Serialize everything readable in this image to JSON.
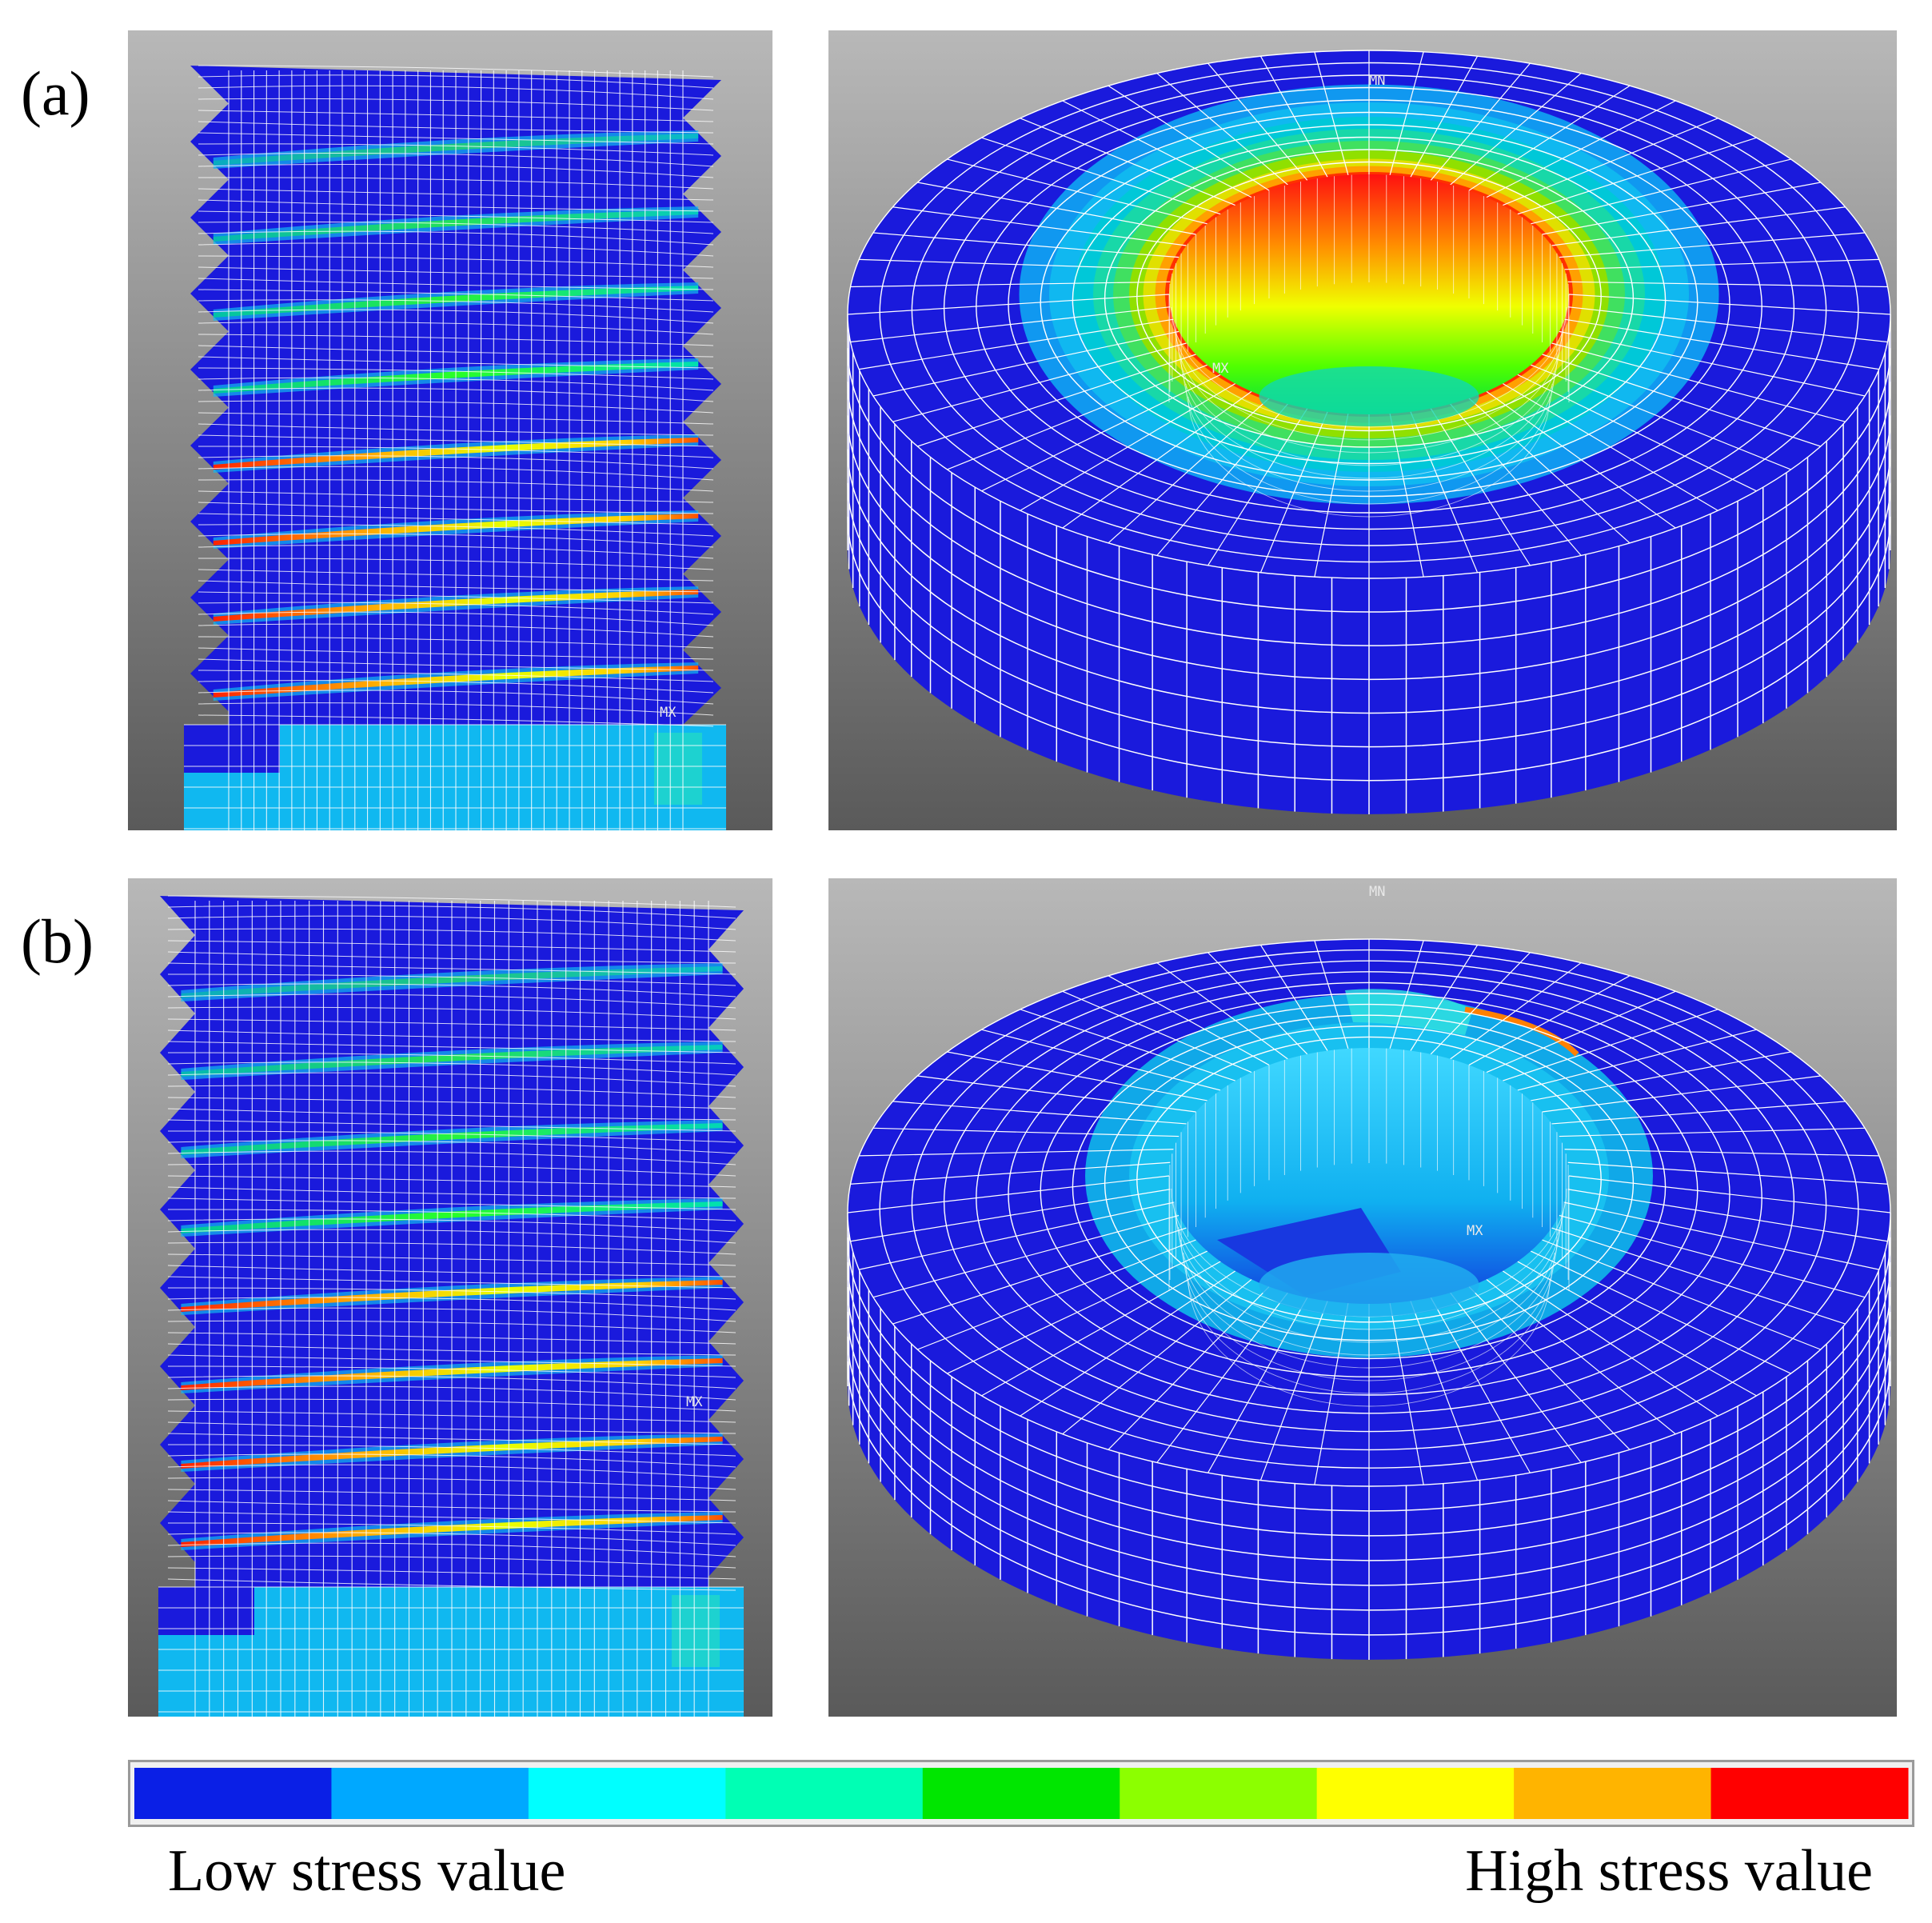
{
  "panels": [
    {
      "label": "(a)",
      "bolt_tag": "MX",
      "nut_max_tag": "MX",
      "nut_min_tag": "MN"
    },
    {
      "label": "(b)",
      "bolt_tag": "MX",
      "nut_max_tag": "MX",
      "nut_min_tag": "MN"
    }
  ],
  "legend": {
    "low_label": "Low stress value",
    "high_label": "High stress value",
    "colors": [
      "#0a1fe6",
      "#00a8ff",
      "#00ffff",
      "#00ffb4",
      "#00e600",
      "#8cff00",
      "#ffff00",
      "#ffb400",
      "#ff0000"
    ]
  },
  "palette": {
    "mesh_blue": "#1a1adc",
    "mesh_line": "#ffffff",
    "background_top": "#b4b4b4",
    "background_bottom": "#5e5e5e"
  }
}
